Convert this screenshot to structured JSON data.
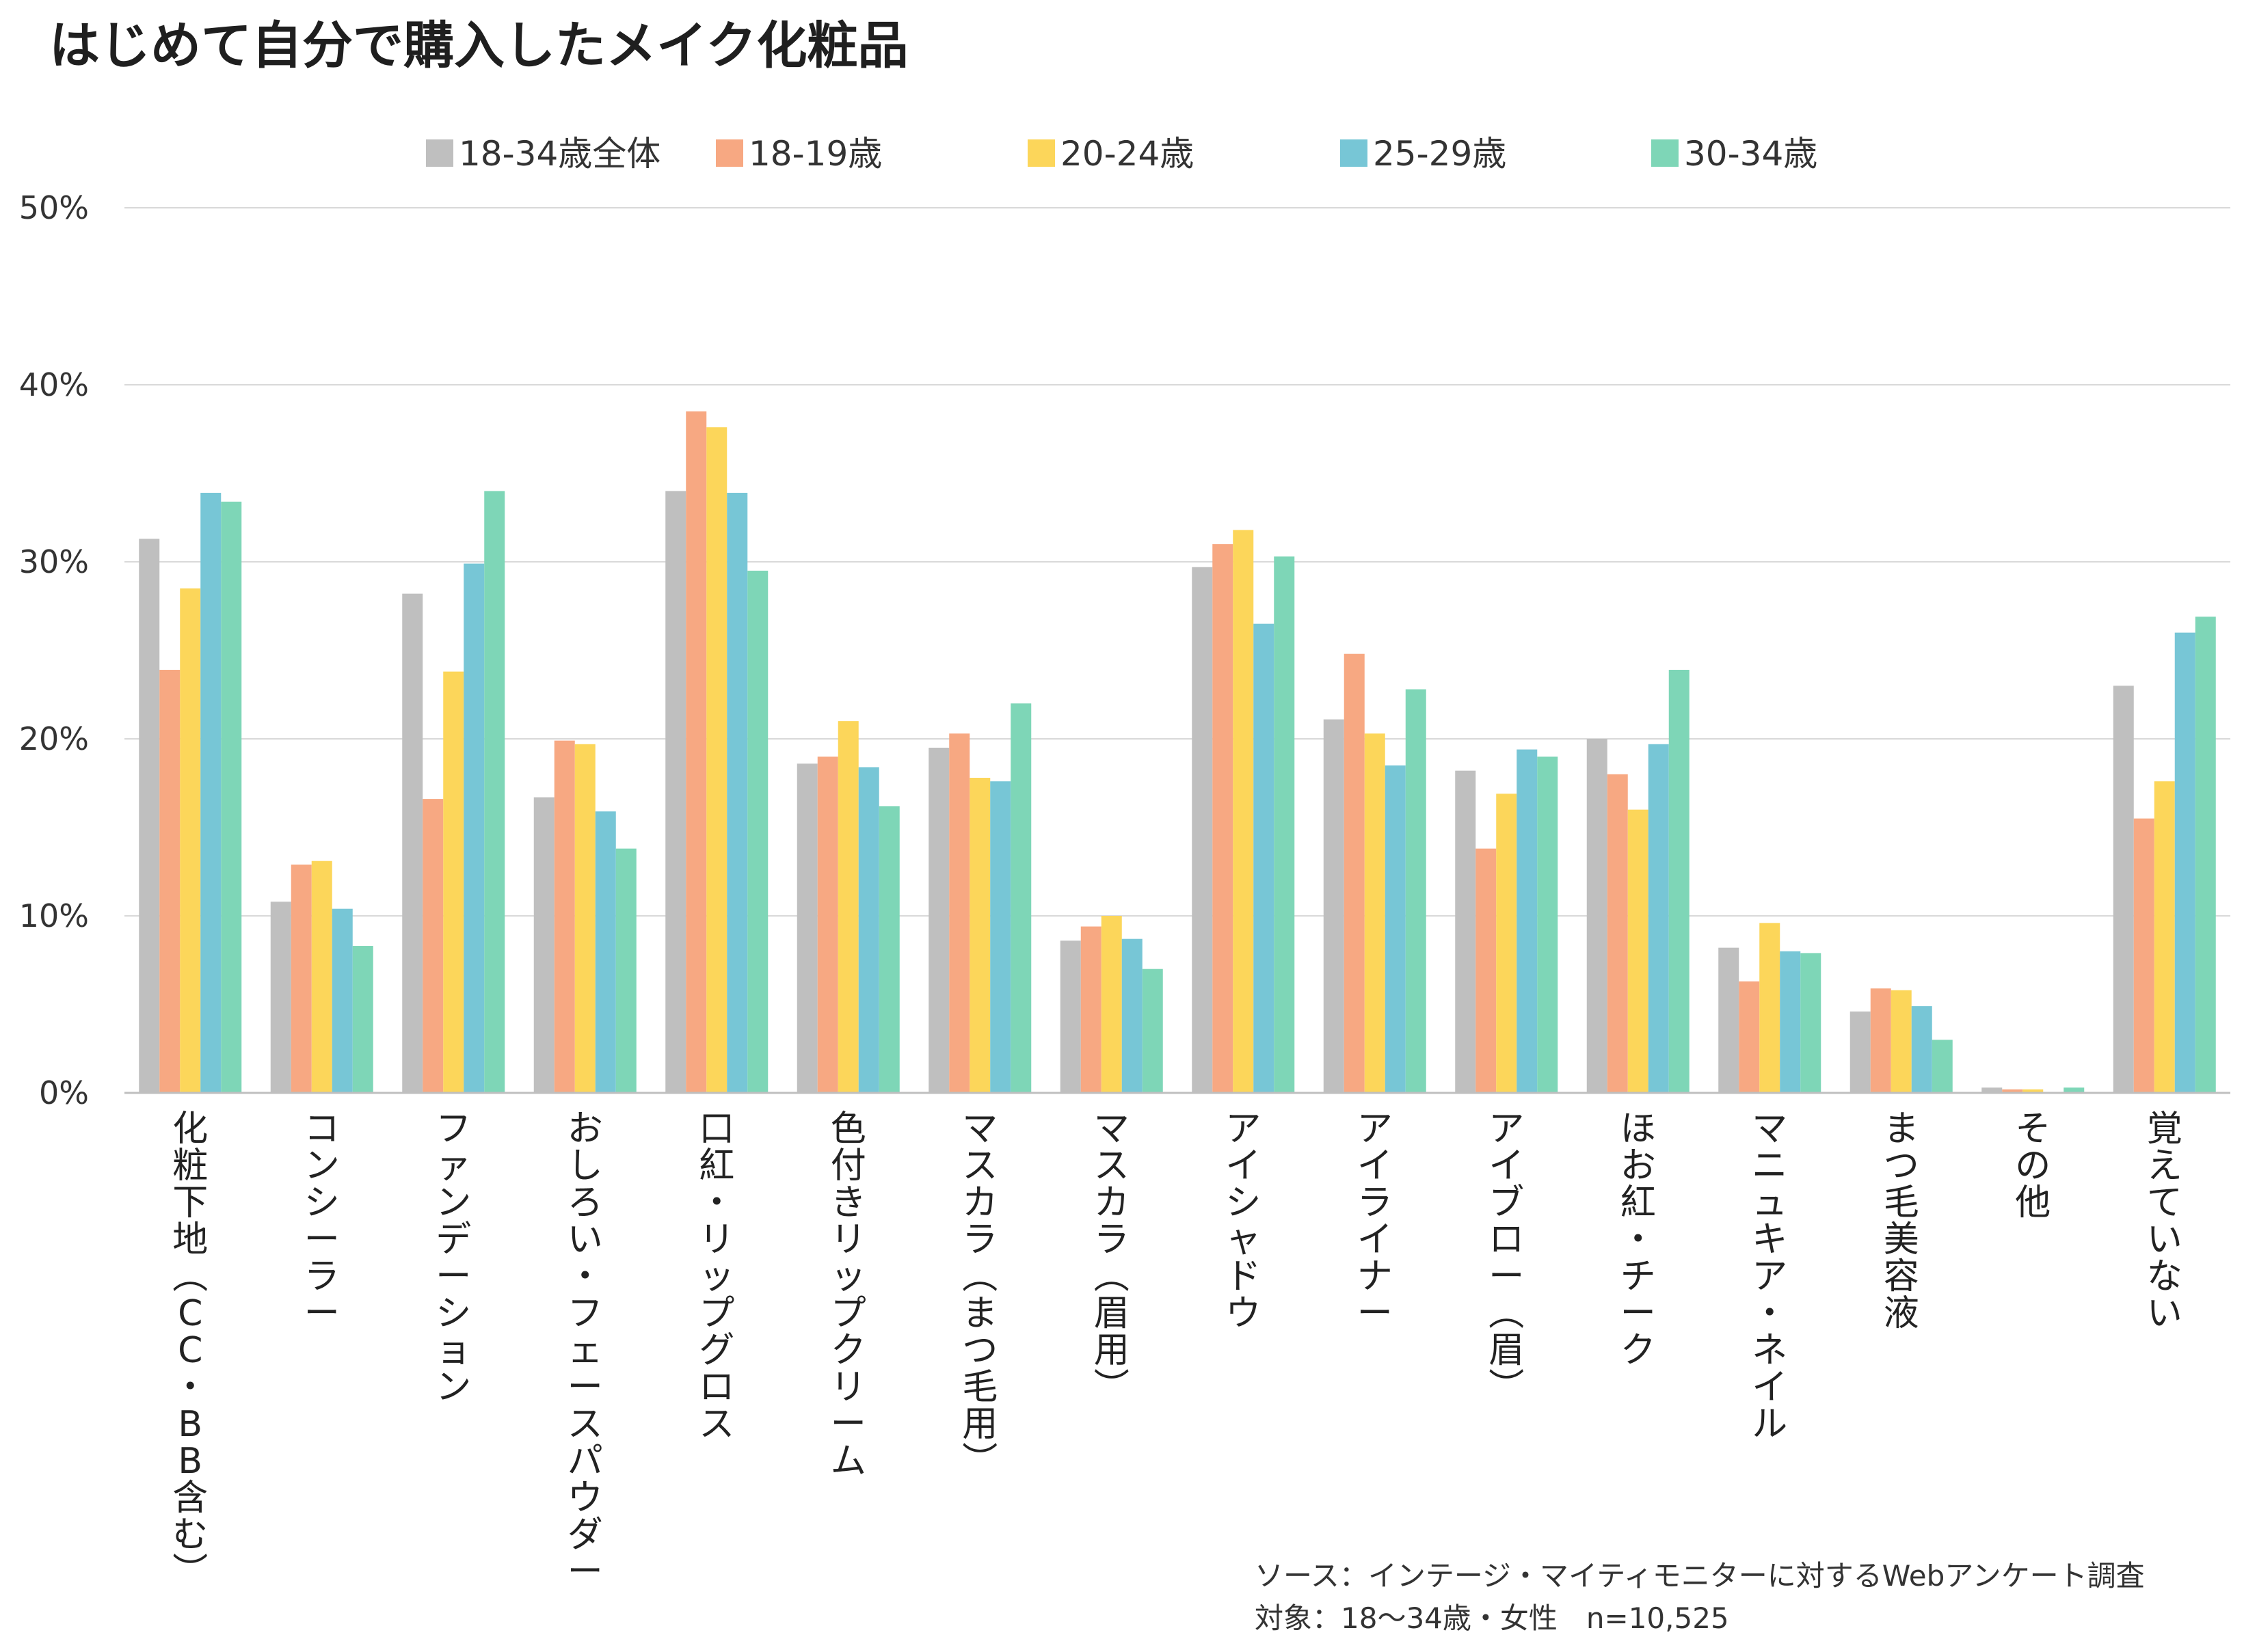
{
  "chart_data": {
    "type": "bar",
    "title": "はじめて自分で購入したメイク化粧品",
    "xlabel": "",
    "ylabel": "",
    "ylim": [
      0,
      50
    ],
    "y_ticks": [
      "0%",
      "10%",
      "20%",
      "30%",
      "40%",
      "50%"
    ],
    "y_tick_values": [
      0,
      10,
      20,
      30,
      40,
      50
    ],
    "grid": true,
    "legend_position": "top",
    "categories": [
      "化粧下地（CC・BB含む）",
      "コンシーラー",
      "ファンデーション",
      "おしろい・フェースパウダー",
      "口紅・リップグロス",
      "色付きリップクリーム",
      "マスカラ（まつ毛用）",
      "マスカラ（眉用）",
      "アイシャドウ",
      "アイライナー",
      "アイブロー（眉）",
      "ほお紅・チーク",
      "マニュキア・ネイル",
      "まつ毛美容液",
      "その他",
      "覚えていない"
    ],
    "series": [
      {
        "name": "18-34歳全体",
        "color": "#bfbfbf",
        "values": [
          31.3,
          10.8,
          28.2,
          16.7,
          34.0,
          18.6,
          19.5,
          8.6,
          29.7,
          21.1,
          18.2,
          20.0,
          8.2,
          4.6,
          0.3,
          23.0
        ]
      },
      {
        "name": "18-19歳",
        "color": "#f7a882",
        "values": [
          23.9,
          12.9,
          16.6,
          19.9,
          38.5,
          19.0,
          20.3,
          9.4,
          31.0,
          24.8,
          13.8,
          18.0,
          6.3,
          5.9,
          0.2,
          15.5
        ]
      },
      {
        "name": "20-24歳",
        "color": "#fcd65a",
        "values": [
          28.5,
          13.1,
          23.8,
          19.7,
          37.6,
          21.0,
          17.8,
          10.0,
          31.8,
          20.3,
          16.9,
          16.0,
          9.6,
          5.8,
          0.2,
          17.6
        ]
      },
      {
        "name": "25-29歳",
        "color": "#77c6d6",
        "values": [
          33.9,
          10.4,
          29.9,
          15.9,
          33.9,
          18.4,
          17.6,
          8.7,
          26.5,
          18.5,
          19.4,
          19.7,
          8.0,
          4.9,
          0.0,
          26.0
        ]
      },
      {
        "name": "30-34歳",
        "color": "#7ed6b7",
        "values": [
          33.4,
          8.3,
          34.0,
          13.8,
          29.5,
          16.2,
          22.0,
          7.0,
          30.3,
          22.8,
          19.0,
          23.9,
          7.9,
          3.0,
          0.3,
          26.9
        ]
      }
    ],
    "annotations": [
      "ソース：インテージ・マイティモニターに対するWebアンケート調査",
      "対象：18〜34歳・女性　n=10,525"
    ]
  }
}
